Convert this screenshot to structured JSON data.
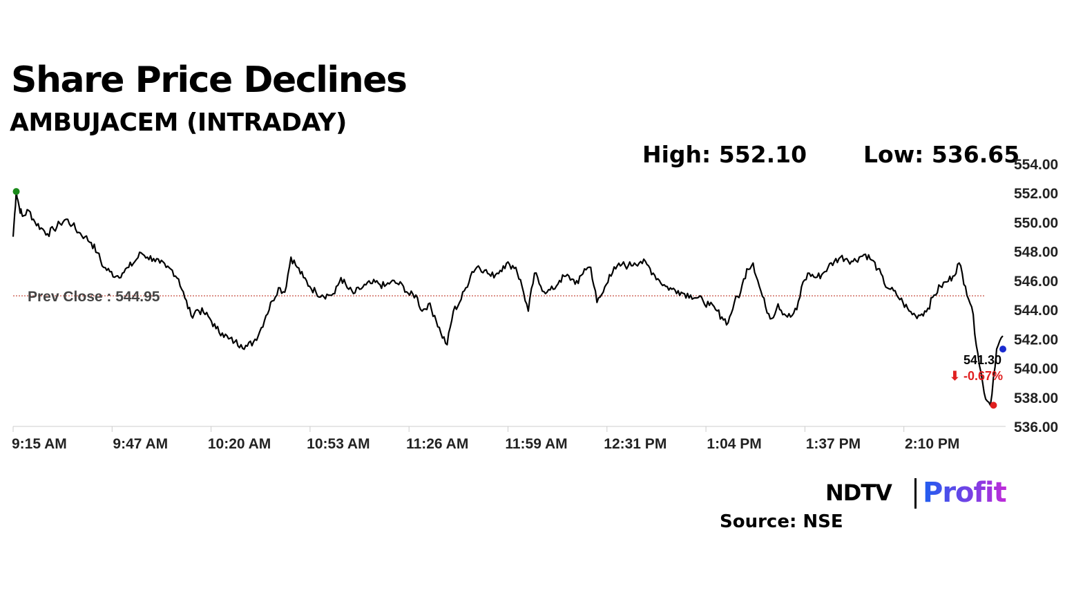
{
  "header": {
    "title": "Share Price Declines",
    "subtitle": "AMBUJACEM (INTRADAY)"
  },
  "stats": {
    "high_label": "High: 552.10",
    "low_label": "Low: 536.65"
  },
  "branding": {
    "ndtv": "NDTV",
    "profit": "Profit",
    "source": "Source: NSE"
  },
  "colors": {
    "line": "#000000",
    "prev_close_line": "#c0392b",
    "high_marker": "#1a8a1a",
    "low_marker": "#e02020",
    "last_marker": "#1a2bd0",
    "change_text": "#e02020",
    "axis": "#cccccc"
  },
  "chart_data": {
    "type": "line",
    "title": "Share Price Declines",
    "subtitle": "AMBUJACEM (INTRADAY)",
    "x_tick_labels": [
      "9:15 AM",
      "9:47 AM",
      "10:20 AM",
      "10:53 AM",
      "11:26 AM",
      "11:59 AM",
      "12:31 PM",
      "1:04 PM",
      "1:37 PM",
      "2:10 PM"
    ],
    "y_tick_labels": [
      "554.00",
      "552.00",
      "550.00",
      "548.00",
      "546.00",
      "544.00",
      "542.00",
      "540.00",
      "538.00",
      "536.00"
    ],
    "ylim": [
      536,
      554
    ],
    "xlim_minutes_from_open": [
      0,
      317
    ],
    "grid": false,
    "prev_close": {
      "label": "Prev Close : 544.95",
      "value": 544.95
    },
    "high": {
      "value": 552.1,
      "time": "9:16 AM"
    },
    "low": {
      "value": 537.45,
      "time": "2:51 PM"
    },
    "last": {
      "value": 541.3,
      "label": "541.30",
      "change_label": "⬇ -0.67%"
    },
    "series": [
      {
        "time_minutes": [
          0,
          1,
          2,
          3,
          5,
          7,
          9,
          11,
          13,
          15,
          17,
          19,
          21,
          23,
          25,
          27,
          29,
          31,
          33,
          35,
          37,
          39,
          41,
          43,
          45,
          47,
          49,
          51,
          53,
          55,
          57,
          59,
          61,
          63,
          65,
          67,
          69,
          71,
          73,
          75,
          77,
          79,
          81,
          83,
          85,
          87,
          89,
          91,
          93,
          95,
          97,
          99,
          101,
          103,
          105,
          107,
          109,
          111,
          113,
          115,
          117,
          119,
          121,
          123,
          125,
          127,
          129,
          131,
          133,
          135,
          137,
          139,
          141,
          143,
          145,
          147,
          149,
          151,
          153,
          155,
          157,
          159,
          161,
          163,
          165,
          167,
          169,
          171,
          173,
          175,
          177,
          179,
          181,
          183,
          185,
          187,
          189,
          191,
          193,
          195,
          197,
          199,
          201,
          203,
          205,
          207,
          209,
          211,
          213,
          215,
          217,
          219,
          221,
          223,
          225,
          227,
          229,
          231,
          233,
          235,
          237,
          239,
          241,
          243,
          245,
          247,
          249,
          251,
          253,
          255,
          257,
          259,
          261,
          263,
          265,
          267,
          269,
          271,
          273,
          275,
          277,
          279,
          281,
          283,
          285,
          287,
          289,
          291,
          293,
          295,
          297,
          299,
          301,
          303,
          305,
          307,
          309,
          311,
          313,
          315,
          317
        ],
        "values": [
          549.0,
          552.1,
          551.0,
          550.4,
          550.8,
          550.0,
          549.6,
          549.2,
          549.5,
          549.9,
          550.2,
          549.8,
          549.3,
          549.0,
          548.6,
          547.9,
          546.9,
          546.6,
          546.3,
          546.5,
          546.9,
          547.3,
          547.9,
          547.6,
          547.5,
          547.2,
          546.9,
          546.7,
          546.1,
          544.8,
          543.6,
          544.0,
          543.8,
          543.4,
          542.7,
          542.4,
          542.0,
          541.8,
          541.6,
          541.5,
          541.8,
          542.5,
          543.6,
          544.6,
          545.5,
          545.2,
          547.6,
          546.9,
          546.2,
          545.6,
          545.2,
          545.0,
          545.0,
          545.1,
          546.2,
          545.5,
          545.1,
          545.4,
          545.7,
          545.8,
          545.8,
          545.6,
          545.9,
          545.8,
          545.6,
          545.0,
          545.0,
          543.9,
          544.4,
          543.6,
          542.4,
          541.6,
          543.9,
          544.5,
          545.5,
          546.6,
          547.0,
          546.7,
          546.3,
          546.5,
          547.0,
          547.1,
          546.9,
          545.6,
          543.9,
          546.5,
          545.6,
          545.2,
          545.4,
          546.0,
          546.3,
          546.1,
          545.8,
          546.8,
          546.9,
          544.5,
          545.2,
          546.4,
          546.8,
          547.1,
          547.0,
          547.2,
          547.3,
          547.1,
          546.5,
          546.0,
          545.6,
          545.4,
          545.3,
          545.1,
          545.0,
          544.8,
          544.6,
          544.3,
          544.0,
          543.5,
          543.1,
          544.5,
          545.2,
          546.8,
          547.2,
          545.6,
          544.2,
          543.4,
          544.4,
          543.7,
          543.5,
          544.0,
          545.9,
          546.5,
          546.2,
          546.4,
          546.9,
          547.3,
          547.6,
          547.5,
          547.3,
          547.6,
          547.8,
          547.4,
          546.8,
          545.8,
          545.4,
          545.0,
          544.5,
          543.9,
          543.6,
          543.7,
          544.1,
          545.0,
          545.6,
          545.9,
          546.3,
          547.2,
          545.6,
          544.2,
          541.0,
          538.3,
          537.45,
          541.3,
          542.2,
          541.6,
          541.3
        ]
      }
    ]
  }
}
